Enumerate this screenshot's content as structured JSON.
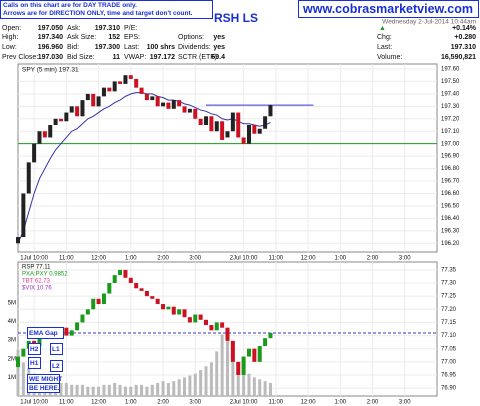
{
  "header": {
    "notice": [
      "Calls on this chart are for DAY TRADE only.",
      "Arrows are for DIRECTION ONLY, time and target don't count."
    ],
    "symbol": "RSH LS",
    "url": "www.cobrasmarketview.com",
    "date": "Wednesday 2-Jul-2014 10:44am",
    "change_arrow": "▲",
    "quote": [
      [
        [
          "Open:",
          "197.050"
        ],
        [
          "High:",
          "197.340"
        ],
        [
          "Low:",
          "196.960"
        ],
        [
          "Prev Close:",
          "197.030"
        ]
      ],
      [
        [
          "Ask:",
          "197.310"
        ],
        [
          "Ask Size:",
          "152"
        ],
        [
          "Bid:",
          "197.300"
        ],
        [
          "Bid Size:",
          "11"
        ]
      ],
      [
        [
          "P/E:"
        ],
        [
          "EPS:"
        ],
        [
          "Last:",
          "100 shrs"
        ],
        [
          "VWAP:",
          "197.172"
        ]
      ],
      [
        null,
        [
          "Options:",
          "yes"
        ],
        [
          "Dividends:",
          "yes"
        ],
        [
          "SCTR (ETF):",
          "69.4"
        ]
      ],
      [
        [
          "+0.14%"
        ],
        [
          "Chg:",
          "+0.280"
        ],
        [
          "Last:",
          "197.310"
        ],
        [
          "Volume:",
          "16,590,821"
        ]
      ]
    ]
  },
  "annotations": [
    "EMA Gap",
    "H2",
    "L1",
    "H1",
    "L2",
    "WE MIGHT",
    "BE HERE."
  ],
  "chart_data": [
    {
      "type": "candlestick",
      "legend": "SPY (5 min) 197.31",
      "up_color": "#222222",
      "down_color": "#cc1122",
      "x": [
        0,
        2,
        4,
        6,
        8,
        10,
        12,
        14,
        16,
        18,
        20,
        22,
        24,
        26,
        28,
        30,
        32,
        34,
        36,
        38,
        40,
        42,
        44,
        46,
        48,
        50,
        52,
        54,
        56,
        58,
        60,
        62,
        64,
        66,
        68,
        70,
        72,
        74,
        76,
        78,
        80,
        82,
        84,
        86,
        88,
        90,
        92,
        94
      ],
      "open": [
        196.2,
        196.25,
        196.6,
        196.85,
        197.0,
        197.1,
        197.05,
        197.15,
        197.2,
        197.18,
        197.25,
        197.3,
        197.22,
        197.35,
        197.4,
        197.3,
        197.38,
        197.45,
        197.42,
        197.5,
        197.48,
        197.55,
        197.52,
        197.45,
        197.4,
        197.35,
        197.38,
        197.3,
        197.33,
        197.28,
        197.35,
        197.3,
        197.25,
        197.28,
        197.2,
        197.15,
        197.22,
        197.1,
        197.18,
        197.05,
        197.1,
        197.25,
        197.05,
        197.0,
        197.15,
        197.08,
        197.12,
        197.22
      ],
      "close": [
        196.25,
        196.6,
        196.85,
        197.0,
        197.1,
        197.05,
        197.15,
        197.2,
        197.18,
        197.25,
        197.3,
        197.22,
        197.35,
        197.4,
        197.3,
        197.38,
        197.45,
        197.42,
        197.5,
        197.48,
        197.55,
        197.52,
        197.45,
        197.4,
        197.35,
        197.38,
        197.3,
        197.33,
        197.28,
        197.35,
        197.3,
        197.25,
        197.28,
        197.2,
        197.15,
        197.22,
        197.1,
        197.18,
        197.03,
        197.1,
        197.25,
        197.05,
        197.0,
        197.15,
        197.08,
        197.12,
        197.22,
        197.31
      ],
      "ma": {
        "color": "#3333aa",
        "values": [
          196.2,
          196.3,
          196.45,
          196.6,
          196.72,
          196.8,
          196.88,
          196.95,
          197.0,
          197.05,
          197.1,
          197.12,
          197.16,
          197.2,
          197.22,
          197.25,
          197.28,
          197.3,
          197.33,
          197.35,
          197.38,
          197.4,
          197.41,
          197.41,
          197.4,
          197.4,
          197.38,
          197.37,
          197.35,
          197.35,
          197.34,
          197.32,
          197.31,
          197.29,
          197.27,
          197.26,
          197.24,
          197.23,
          197.2,
          197.19,
          197.2,
          197.18,
          197.16,
          197.16,
          197.15,
          197.14,
          197.15,
          197.17
        ]
      },
      "lines": [
        {
          "value": 197.0,
          "color": "#1a9a1a",
          "xrange": [
            0,
            156
          ]
        },
        {
          "value": 197.31,
          "color": "#3333cc",
          "xrange": [
            70,
            110
          ]
        }
      ],
      "xlim": [
        0,
        156
      ],
      "ylim": [
        196.13,
        197.64
      ],
      "grid": true,
      "xticks": [
        {
          "value": 6,
          "label": "1Jul 10:00"
        },
        {
          "value": 18,
          "label": "11:00"
        },
        {
          "value": 30,
          "label": "12:00"
        },
        {
          "value": 42,
          "label": "1:00"
        },
        {
          "value": 54,
          "label": "2:00"
        },
        {
          "value": 66,
          "label": "3:00"
        },
        {
          "value": 84,
          "label": "2Jul 10:00"
        },
        {
          "value": 96,
          "label": "11:00"
        },
        {
          "value": 108,
          "label": "12:00"
        },
        {
          "value": 120,
          "label": "1:00"
        },
        {
          "value": 132,
          "label": "2:00"
        },
        {
          "value": 144,
          "label": "3:00"
        }
      ],
      "yticks": [
        {
          "value": 196.2,
          "label": "196.20"
        },
        {
          "value": 196.3,
          "label": "196.30"
        },
        {
          "value": 196.4,
          "label": "196.40"
        },
        {
          "value": 196.5,
          "label": "196.50"
        },
        {
          "value": 196.6,
          "label": "196.60"
        },
        {
          "value": 196.7,
          "label": "196.70"
        },
        {
          "value": 196.8,
          "label": "196.80"
        },
        {
          "value": 196.9,
          "label": "196.90"
        },
        {
          "value": 197.0,
          "label": "197.00"
        },
        {
          "value": 197.1,
          "label": "197.10"
        },
        {
          "value": 197.2,
          "label": "197.20"
        },
        {
          "value": 197.3,
          "label": "197.30"
        },
        {
          "value": 197.4,
          "label": "197.40"
        },
        {
          "value": 197.5,
          "label": "197.50"
        },
        {
          "value": 197.6,
          "label": "197.60"
        }
      ]
    },
    {
      "type": "candlestick",
      "up_color": "#1a9a1a",
      "down_color": "#cc1122",
      "legend_items": [
        {
          "name": "RSP 77.11",
          "color": "#111111"
        },
        {
          "name": "PXA:PXY 0.9852",
          "color": "#1a9a1a"
        },
        {
          "name": "TBT 62.73",
          "color": "#e0408a"
        },
        {
          "name": "$VIX 10.76",
          "color": "#9933cc"
        }
      ],
      "x": [
        0,
        2,
        4,
        6,
        8,
        10,
        12,
        14,
        16,
        18,
        20,
        22,
        24,
        26,
        28,
        30,
        32,
        34,
        36,
        38,
        40,
        42,
        44,
        46,
        48,
        50,
        52,
        54,
        56,
        58,
        60,
        62,
        64,
        66,
        68,
        70,
        72,
        74,
        76,
        78,
        80,
        82,
        84,
        86,
        88,
        90,
        92,
        94
      ],
      "open": [
        76.98,
        77.02,
        77.05,
        77.08,
        77.06,
        77.1,
        77.12,
        77.09,
        77.11,
        77.13,
        77.1,
        77.12,
        77.15,
        77.18,
        77.2,
        77.24,
        77.22,
        77.26,
        77.3,
        77.33,
        77.35,
        77.32,
        77.3,
        77.28,
        77.27,
        77.25,
        77.24,
        77.22,
        77.2,
        77.21,
        77.18,
        77.2,
        77.17,
        77.15,
        77.18,
        77.16,
        77.14,
        77.12,
        77.15,
        77.13,
        77.08,
        77.0,
        76.95,
        77.02,
        77.05,
        77.0,
        77.06,
        77.09
      ],
      "close": [
        77.02,
        77.05,
        77.08,
        77.06,
        77.1,
        77.12,
        77.09,
        77.11,
        77.13,
        77.1,
        77.12,
        77.15,
        77.18,
        77.2,
        77.24,
        77.22,
        77.26,
        77.3,
        77.33,
        77.35,
        77.32,
        77.3,
        77.28,
        77.27,
        77.25,
        77.24,
        77.22,
        77.2,
        77.21,
        77.18,
        77.2,
        77.17,
        77.15,
        77.18,
        77.16,
        77.14,
        77.12,
        77.15,
        77.13,
        77.08,
        77.0,
        76.95,
        77.02,
        77.05,
        77.0,
        77.06,
        77.09,
        77.11
      ],
      "volume": {
        "color": "#bbbbbb",
        "axis": "y2",
        "values": [
          2.5,
          1.8,
          1.5,
          1.2,
          1.0,
          0.9,
          0.8,
          0.8,
          0.7,
          0.7,
          0.6,
          0.6,
          0.6,
          0.5,
          0.5,
          0.5,
          0.6,
          0.6,
          0.7,
          0.6,
          0.5,
          0.5,
          0.6,
          0.6,
          0.5,
          0.6,
          0.7,
          0.8,
          0.7,
          0.8,
          0.9,
          1.0,
          1.1,
          1.2,
          1.4,
          1.6,
          1.8,
          2.4,
          3.3,
          3.0,
          2.2,
          1.8,
          1.5,
          1.2,
          1.0,
          0.9,
          0.8,
          0.7
        ]
      },
      "lines": [
        {
          "value": 77.11,
          "color": "#3333cc",
          "xrange": [
            0,
            156
          ],
          "dashed": true
        }
      ],
      "xlim": [
        0,
        156
      ],
      "ylim": [
        76.87,
        77.38
      ],
      "y2lim": [
        0,
        7.2
      ],
      "grid": true,
      "xticks": [
        {
          "value": 6,
          "label": "1Jul 10:00"
        },
        {
          "value": 18,
          "label": "11:00"
        },
        {
          "value": 30,
          "label": "12:00"
        },
        {
          "value": 42,
          "label": "1:00"
        },
        {
          "value": 54,
          "label": "2:00"
        },
        {
          "value": 66,
          "label": "3:00"
        },
        {
          "value": 84,
          "label": "2Jul 10:00"
        },
        {
          "value": 96,
          "label": "11:00"
        },
        {
          "value": 108,
          "label": "12:00"
        },
        {
          "value": 120,
          "label": "1:00"
        },
        {
          "value": 132,
          "label": "2:00"
        },
        {
          "value": 144,
          "label": "3:00"
        }
      ],
      "yticks": [
        {
          "value": 76.9,
          "label": "76.90"
        },
        {
          "value": 76.95,
          "label": "76.95"
        },
        {
          "value": 77.0,
          "label": "77.00"
        },
        {
          "value": 77.05,
          "label": "77.05"
        },
        {
          "value": 77.1,
          "label": "77.10"
        },
        {
          "value": 77.15,
          "label": "77.15"
        },
        {
          "value": 77.2,
          "label": "77.20"
        },
        {
          "value": 77.25,
          "label": "77.25"
        },
        {
          "value": 77.3,
          "label": "77.30"
        },
        {
          "value": 77.35,
          "label": "77.35"
        }
      ],
      "y2ticks": [
        {
          "value": 1,
          "label": "1M"
        },
        {
          "value": 2,
          "label": "2M"
        },
        {
          "value": 3,
          "label": "3M"
        },
        {
          "value": 4,
          "label": "4M"
        },
        {
          "value": 5,
          "label": "5M"
        }
      ]
    }
  ]
}
